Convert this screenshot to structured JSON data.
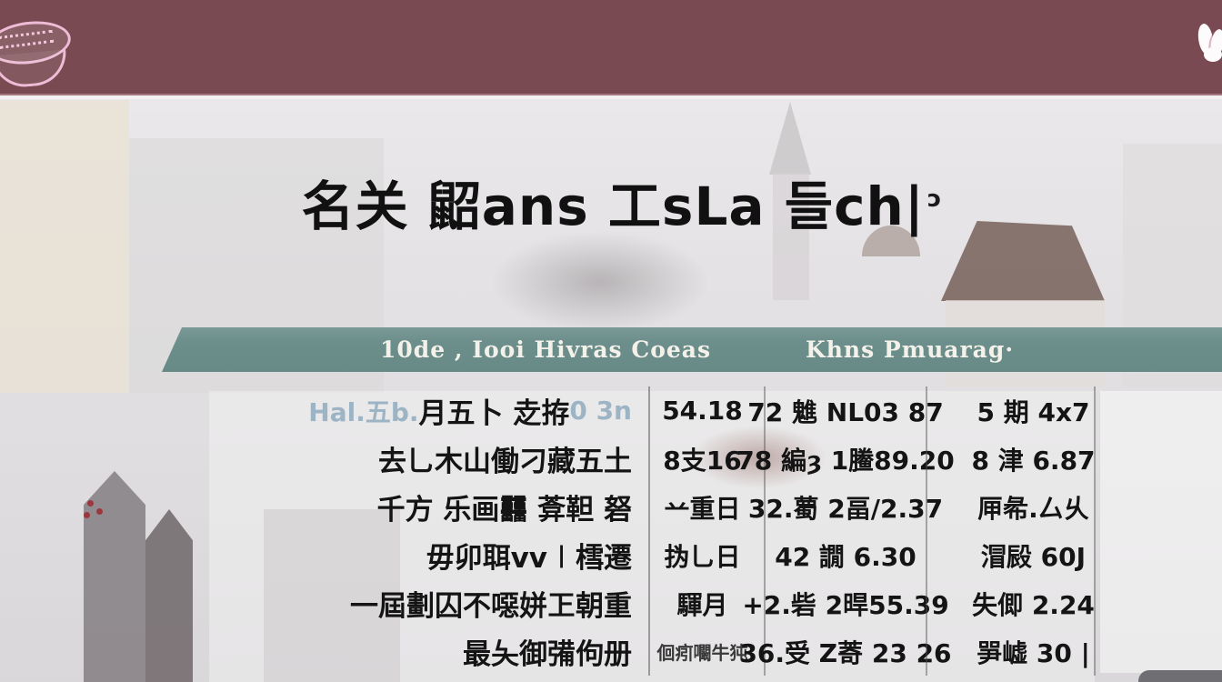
{
  "colors": {
    "top_bar_maroon": "#7a4a52",
    "table_header_teal": "#6d8f8c",
    "background_gray": "#dddbdd",
    "faint_label_blue": "#9db4c5"
  },
  "top_bar": {
    "left_logo_icon": "pink-oval-badge",
    "right_logo_icon": "white-floral-emblem"
  },
  "title": {
    "text": "名关 鼦ans 工sLa 들ch|",
    "mark": "ɔ"
  },
  "table": {
    "header": {
      "label_column": "10de , Iooi Hivras Coeas",
      "value_column": "Khns Pmuarag·"
    },
    "rows": [
      {
        "label_prefix": "Hal.五b.",
        "label": "月五卜 赱拵",
        "label_suffix": "0 3n",
        "c1": "54.18",
        "c2": "72 魋 NL03 87",
        "c3": "5 期 4x7"
      },
      {
        "label": "去乚木山働刁藏五土",
        "c1": "8支16",
        "c2": "78 編ȝ 1䲢89.20",
        "c3": "8 津 6.87"
      },
      {
        "label": "千方 乐画䨻 葊靼 砮",
        "c1": "䒑重日",
        "c2": "32.薥 2畐/2.37",
        "c3": "㕅㣇.厶乆"
      },
      {
        "label": "毋卯聑vv㆐樰遷",
        "c1": "㧑乚日",
        "c2": "42 譋 6.30",
        "c3": "㴘㲀 60J"
      },
      {
        "label": "一屆劃囚不噁姘㠪朝重",
        "c1": "䮝月",
        "c2": "+2.砦 2晘55.39",
        "c3": "失㑡 2.24"
      },
      {
        "label": "最夨御㣁佝册",
        "c1": "佪㽼㘚牛㹠",
        "c2": "36.受 Z䓫 23 26",
        "c3": "㖐㠊 30 |"
      }
    ]
  }
}
